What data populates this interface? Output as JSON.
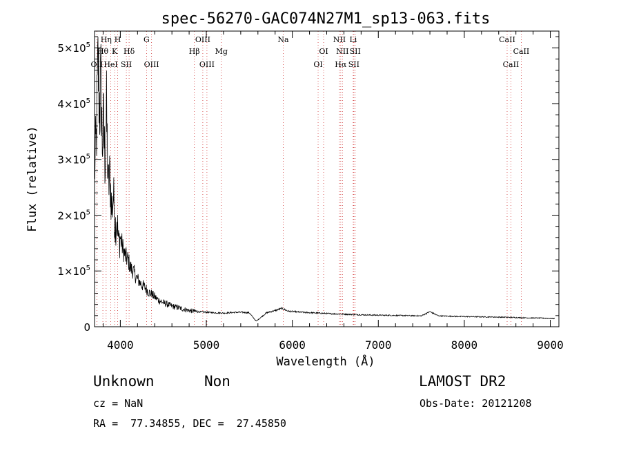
{
  "chart_data": {
    "type": "line",
    "title": "spec-56270-GAC074N27M1_sp13-063.fits",
    "xlabel": "Wavelength (Å)",
    "ylabel": "Flux (relative)",
    "xlim": [
      3700,
      9100
    ],
    "ylim": [
      0,
      530000
    ],
    "grid": false,
    "x_ticks": [
      {
        "v": 4000,
        "label": "4000"
      },
      {
        "v": 5000,
        "label": "5000"
      },
      {
        "v": 6000,
        "label": "6000"
      },
      {
        "v": 7000,
        "label": "7000"
      },
      {
        "v": 8000,
        "label": "8000"
      },
      {
        "v": 9000,
        "label": "9000"
      }
    ],
    "y_ticks": [
      {
        "v": 0,
        "mant": "0",
        "exp": ""
      },
      {
        "v": 100000,
        "mant": "1×10",
        "exp": "5"
      },
      {
        "v": 200000,
        "mant": "2×10",
        "exp": "5"
      },
      {
        "v": 300000,
        "mant": "3×10",
        "exp": "5"
      },
      {
        "v": 400000,
        "mant": "4×10",
        "exp": "5"
      },
      {
        "v": 500000,
        "mant": "5×10",
        "exp": "5"
      }
    ],
    "spectral_lines": [
      {
        "label": "OII",
        "x": 3727,
        "row": 3
      },
      {
        "label": "Hθ",
        "x": 3797,
        "row": 2
      },
      {
        "label": "Hη",
        "x": 3835,
        "row": 1
      },
      {
        "label": "K",
        "x": 3934,
        "row": 2
      },
      {
        "label": "HeI",
        "x": 3889,
        "row": 3
      },
      {
        "label": "H",
        "x": 3969,
        "row": 1
      },
      {
        "label": "Hδ",
        "x": 4102,
        "row": 2
      },
      {
        "label": "SII",
        "x": 4070,
        "row": 3
      },
      {
        "label": "G",
        "x": 4305,
        "row": 1
      },
      {
        "label": "OIII",
        "x": 4363,
        "row": 3
      },
      {
        "label": "Hβ",
        "x": 4861,
        "row": 2
      },
      {
        "label": "OIII",
        "x": 4959,
        "row": 1
      },
      {
        "label": "OIII",
        "x": 5007,
        "row": 3
      },
      {
        "label": "Mg",
        "x": 5175,
        "row": 2
      },
      {
        "label": "Na",
        "x": 5894,
        "row": 1
      },
      {
        "label": "OI",
        "x": 6300,
        "row": 3
      },
      {
        "label": "OI",
        "x": 6364,
        "row": 2
      },
      {
        "label": "NII",
        "x": 6548,
        "row": 1
      },
      {
        "label": "Hα",
        "x": 6563,
        "row": 3
      },
      {
        "label": "NII",
        "x": 6583,
        "row": 2
      },
      {
        "label": "Li",
        "x": 6708,
        "row": 1
      },
      {
        "label": "SII",
        "x": 6716,
        "row": 3
      },
      {
        "label": "SII",
        "x": 6731,
        "row": 2
      },
      {
        "label": "CaII",
        "x": 8498,
        "row": 1
      },
      {
        "label": "CaII",
        "x": 8542,
        "row": 3
      },
      {
        "label": "CaII",
        "x": 8662,
        "row": 2
      }
    ],
    "series": [
      {
        "x": [
          3700,
          3720,
          3740,
          3760,
          3775,
          3790,
          3805,
          3820,
          3840,
          3860,
          3880,
          3900,
          3920,
          3940,
          3960,
          3980,
          4000,
          4030,
          4060,
          4090,
          4120,
          4150,
          4180,
          4210,
          4250,
          4290,
          4330,
          4370,
          4410,
          4450,
          4500,
          4550,
          4600,
          4650,
          4700,
          4750,
          4800,
          4850,
          4900,
          4950,
          5000,
          5100,
          5200,
          5300,
          5400,
          5500,
          5580,
          5700,
          5800,
          5880,
          5950,
          6100,
          6300,
          6500,
          6700,
          6900,
          7100,
          7300,
          7500,
          7600,
          7700,
          7900,
          8100,
          8300,
          8500,
          8700,
          8900,
          9050
        ],
        "y": [
          280000,
          330000,
          470000,
          390000,
          440000,
          330000,
          360000,
          300000,
          380000,
          250000,
          270000,
          210000,
          235000,
          180000,
          195000,
          150000,
          160000,
          140000,
          125000,
          120000,
          105000,
          100000,
          90000,
          83000,
          75000,
          70000,
          62000,
          58000,
          52000,
          47000,
          43000,
          40000,
          37000,
          35000,
          33000,
          31000,
          29000,
          28000,
          27000,
          26500,
          26000,
          25000,
          24500,
          25500,
          26000,
          25000,
          10000,
          25000,
          29000,
          33000,
          28000,
          26000,
          24500,
          23000,
          22000,
          21000,
          20500,
          20000,
          19500,
          27000,
          19500,
          18500,
          18000,
          17500,
          17000,
          16000,
          15500,
          14500
        ]
      }
    ]
  },
  "info": {
    "classification": "Unknown",
    "subclass": "Non",
    "cz": "cz = NaN",
    "radec": "RA =  77.34855, DEC =  27.45850",
    "survey": "LAMOST DR2",
    "obs_date": "Obs-Date: 20121208"
  }
}
